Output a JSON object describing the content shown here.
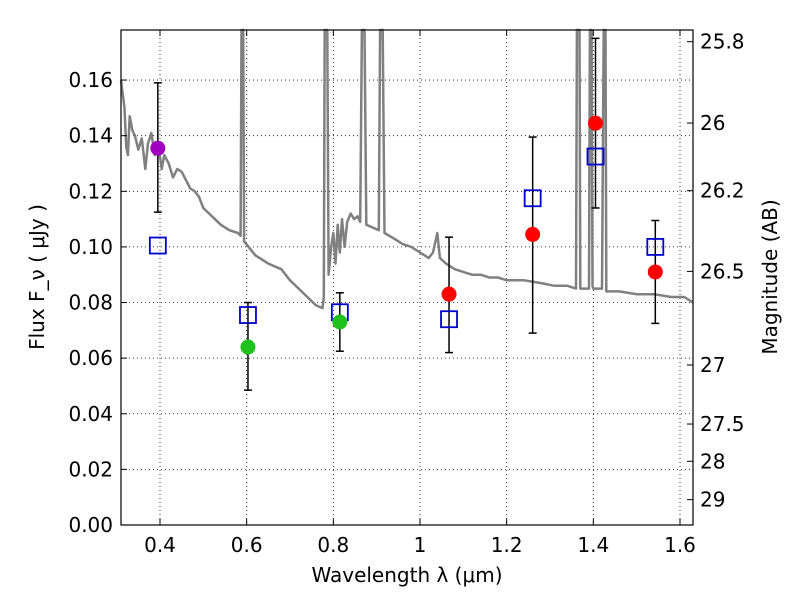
{
  "chart_data": {
    "type": "scatter",
    "xlabel": "Wavelength  λ (μm)",
    "ylabel": "Flux  F_ν  ( μJy )",
    "ylabel_right": "Magnitude (AB)",
    "xlim": [
      0.31,
      1.63
    ],
    "ylim": [
      0.0,
      0.178
    ],
    "grid": true,
    "x_ticks": [
      0.4,
      0.6,
      0.8,
      1.0,
      1.2,
      1.4,
      1.6
    ],
    "x_tick_labels": [
      "0.4",
      "0.6",
      "0.8",
      "1",
      "1.2",
      "1.4",
      "1.6"
    ],
    "y_ticks": [
      0.0,
      0.02,
      0.04,
      0.06,
      0.08,
      0.1,
      0.12,
      0.14,
      0.16
    ],
    "y_tick_labels": [
      "0.00",
      "0.02",
      "0.04",
      "0.06",
      "0.08",
      "0.10",
      "0.12",
      "0.14",
      "0.16"
    ],
    "right_ticks": [
      {
        "label": "25.8",
        "mag": 25.8
      },
      {
        "label": "26",
        "mag": 26.0
      },
      {
        "label": "26.2",
        "mag": 26.2
      },
      {
        "label": "26.5",
        "mag": 26.5
      },
      {
        "label": "27",
        "mag": 27.0
      },
      {
        "label": "27.5",
        "mag": 27.5
      },
      {
        "label": "28",
        "mag": 28.0
      },
      {
        "label": "29",
        "mag": 29.0
      }
    ],
    "colors": {
      "model": "#808080",
      "purple": "#a000c0",
      "green": "#1fc11f",
      "red": "#ff0000",
      "square": "#0000cc",
      "errorbar": "#000000",
      "grid": "#000000"
    },
    "observed": [
      {
        "x": 0.395,
        "y": 0.1355,
        "ylow": 0.1125,
        "yhigh": 0.159,
        "color": "purple"
      },
      {
        "x": 0.603,
        "y": 0.064,
        "ylow": 0.0485,
        "yhigh": 0.08,
        "color": "green"
      },
      {
        "x": 0.815,
        "y": 0.073,
        "ylow": 0.0625,
        "yhigh": 0.0835,
        "color": "green"
      },
      {
        "x": 1.067,
        "y": 0.083,
        "ylow": 0.062,
        "yhigh": 0.1035,
        "color": "red"
      },
      {
        "x": 1.26,
        "y": 0.1045,
        "ylow": 0.069,
        "yhigh": 0.1395,
        "color": "red"
      },
      {
        "x": 1.405,
        "y": 0.1445,
        "ylow": 0.114,
        "yhigh": 0.175,
        "color": "red"
      },
      {
        "x": 1.543,
        "y": 0.091,
        "ylow": 0.0725,
        "yhigh": 0.1095,
        "color": "red"
      }
    ],
    "model_photometry": [
      {
        "x": 0.395,
        "y": 0.1005
      },
      {
        "x": 0.603,
        "y": 0.0755
      },
      {
        "x": 0.815,
        "y": 0.0765
      },
      {
        "x": 1.067,
        "y": 0.074
      },
      {
        "x": 1.26,
        "y": 0.1175
      },
      {
        "x": 1.405,
        "y": 0.1325
      },
      {
        "x": 1.543,
        "y": 0.1
      }
    ],
    "model_spectrum": [
      [
        0.31,
        0.16
      ],
      [
        0.318,
        0.15
      ],
      [
        0.322,
        0.136
      ],
      [
        0.326,
        0.133
      ],
      [
        0.33,
        0.147
      ],
      [
        0.336,
        0.142
      ],
      [
        0.342,
        0.14
      ],
      [
        0.35,
        0.135
      ],
      [
        0.358,
        0.139
      ],
      [
        0.366,
        0.128
      ],
      [
        0.372,
        0.137
      ],
      [
        0.38,
        0.141
      ],
      [
        0.388,
        0.133
      ],
      [
        0.396,
        0.137
      ],
      [
        0.404,
        0.128
      ],
      [
        0.41,
        0.133
      ],
      [
        0.42,
        0.13
      ],
      [
        0.43,
        0.125
      ],
      [
        0.44,
        0.128
      ],
      [
        0.45,
        0.127
      ],
      [
        0.46,
        0.124
      ],
      [
        0.47,
        0.121
      ],
      [
        0.48,
        0.12
      ],
      [
        0.49,
        0.118
      ],
      [
        0.5,
        0.114
      ],
      [
        0.52,
        0.111
      ],
      [
        0.54,
        0.108
      ],
      [
        0.56,
        0.106
      ],
      [
        0.58,
        0.105
      ],
      [
        0.586,
        0.104
      ],
      [
        0.588,
        0.178
      ],
      [
        0.592,
        0.178
      ],
      [
        0.594,
        0.102
      ],
      [
        0.62,
        0.097
      ],
      [
        0.65,
        0.094
      ],
      [
        0.68,
        0.092
      ],
      [
        0.7,
        0.088
      ],
      [
        0.72,
        0.085
      ],
      [
        0.74,
        0.082
      ],
      [
        0.76,
        0.079
      ],
      [
        0.775,
        0.078
      ],
      [
        0.778,
        0.082
      ],
      [
        0.78,
        0.178
      ],
      [
        0.786,
        0.178
      ],
      [
        0.789,
        0.09
      ],
      [
        0.795,
        0.1
      ],
      [
        0.8,
        0.105
      ],
      [
        0.805,
        0.094
      ],
      [
        0.81,
        0.108
      ],
      [
        0.815,
        0.098
      ],
      [
        0.82,
        0.11
      ],
      [
        0.826,
        0.1
      ],
      [
        0.832,
        0.109
      ],
      [
        0.84,
        0.112
      ],
      [
        0.848,
        0.11
      ],
      [
        0.856,
        0.111
      ],
      [
        0.862,
        0.109
      ],
      [
        0.866,
        0.178
      ],
      [
        0.872,
        0.178
      ],
      [
        0.876,
        0.108
      ],
      [
        0.89,
        0.107
      ],
      [
        0.905,
        0.106
      ],
      [
        0.908,
        0.178
      ],
      [
        0.914,
        0.178
      ],
      [
        0.918,
        0.105
      ],
      [
        0.94,
        0.103
      ],
      [
        0.96,
        0.101
      ],
      [
        0.98,
        0.1
      ],
      [
        1.0,
        0.098
      ],
      [
        1.02,
        0.096
      ],
      [
        1.03,
        0.098
      ],
      [
        1.04,
        0.105
      ],
      [
        1.046,
        0.096
      ],
      [
        1.06,
        0.094
      ],
      [
        1.08,
        0.092
      ],
      [
        1.1,
        0.091
      ],
      [
        1.12,
        0.09
      ],
      [
        1.14,
        0.09
      ],
      [
        1.16,
        0.089
      ],
      [
        1.18,
        0.089
      ],
      [
        1.2,
        0.088
      ],
      [
        1.24,
        0.088
      ],
      [
        1.28,
        0.087
      ],
      [
        1.31,
        0.086
      ],
      [
        1.34,
        0.086
      ],
      [
        1.36,
        0.085
      ],
      [
        1.362,
        0.178
      ],
      [
        1.368,
        0.178
      ],
      [
        1.37,
        0.085
      ],
      [
        1.39,
        0.085
      ],
      [
        1.392,
        0.178
      ],
      [
        1.396,
        0.178
      ],
      [
        1.398,
        0.086
      ],
      [
        1.4,
        0.085
      ],
      [
        1.42,
        0.085
      ],
      [
        1.424,
        0.178
      ],
      [
        1.428,
        0.178
      ],
      [
        1.43,
        0.084
      ],
      [
        1.46,
        0.084
      ],
      [
        1.5,
        0.083
      ],
      [
        1.54,
        0.083
      ],
      [
        1.58,
        0.082
      ],
      [
        1.61,
        0.082
      ],
      [
        1.63,
        0.08
      ]
    ]
  }
}
